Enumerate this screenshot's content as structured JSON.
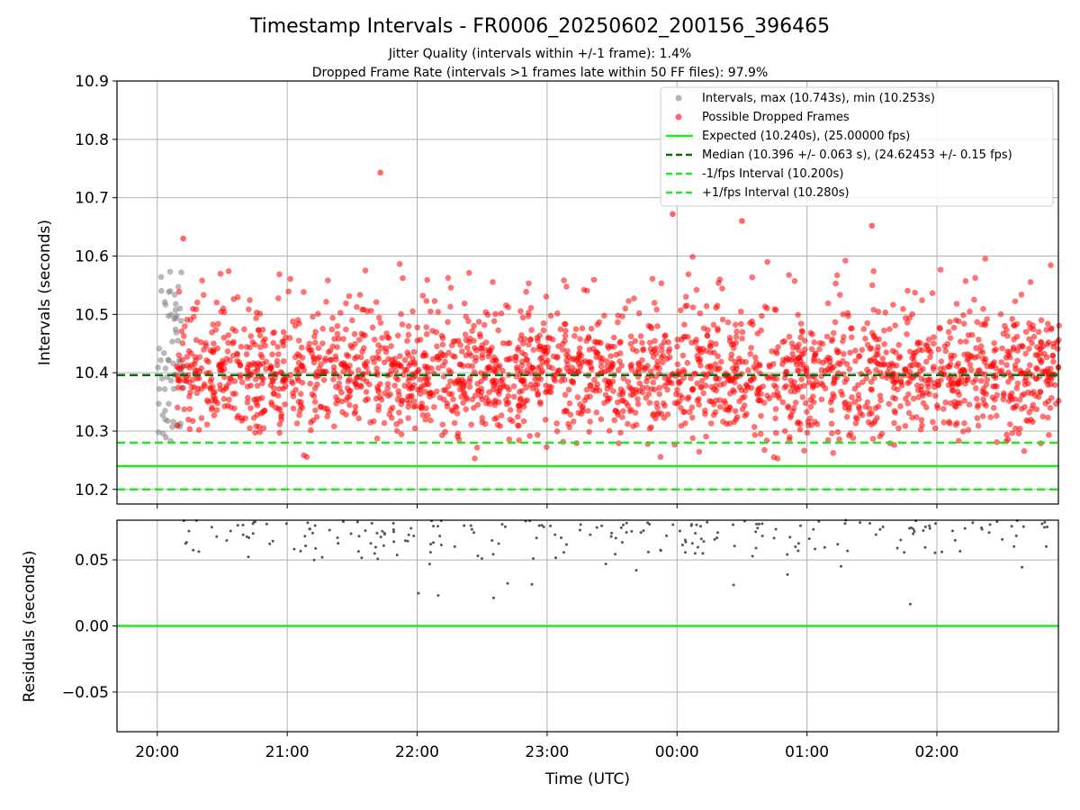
{
  "chart_data": {
    "type": "scatter",
    "title": "Timestamp Intervals - FR0006_20250602_200156_396465",
    "subtitle_lines": [
      "Jitter Quality (intervals within +/-1 frame): 1.4%",
      "Dropped Frame Rate (intervals >1 frames late within 50 FF files): 97.9%"
    ],
    "xlabel": "Time (UTC)",
    "x_tick_labels": [
      "20:00",
      "21:00",
      "22:00",
      "23:00",
      "00:00",
      "01:00",
      "02:00"
    ],
    "panels": [
      {
        "name": "intervals",
        "ylabel": "Intervals (seconds)",
        "ylim": [
          10.175,
          10.9
        ],
        "y_ticks": [
          10.2,
          10.3,
          10.4,
          10.5,
          10.6,
          10.7,
          10.8,
          10.9
        ],
        "y_tick_labels": [
          "10.2",
          "10.3",
          "10.4",
          "10.5",
          "10.6",
          "10.7",
          "10.8",
          "10.9"
        ],
        "grid": true,
        "legend_position": "top-right",
        "series": [
          {
            "name": "Intervals, max (10.743s), min (10.253s)",
            "marker": "circle",
            "color": "#808080",
            "x_range_hours": [
              0.0,
              0.2
            ],
            "y_range": [
              10.28,
              10.575
            ],
            "approx_count": 60
          },
          {
            "name": "Possible Dropped Frames",
            "marker": "circle",
            "color": "#ff0000",
            "x_range_hours": [
              0.15,
              6.95
            ],
            "y_range": [
              10.253,
              10.743
            ],
            "center": 10.396,
            "approx_count": 2300,
            "highlighted_points": [
              {
                "x": "21:43",
                "y": 10.743
              },
              {
                "x": "20:12",
                "y": 10.63
              },
              {
                "x": "23:58",
                "y": 10.672
              },
              {
                "x": "00:30",
                "y": 10.66
              },
              {
                "x": "01:30",
                "y": 10.652
              }
            ]
          }
        ],
        "lines": [
          {
            "name": "Expected (10.240s), (25.00000 fps)",
            "y": 10.24,
            "style": "solid",
            "color": "#22e822"
          },
          {
            "name": "Median (10.396 +/- 0.063 s), (24.62453 +/- 0.15 fps)",
            "y": 10.396,
            "style": "dashed",
            "color": "#0b6e0b"
          },
          {
            "name": "-1/fps Interval (10.200s)",
            "y": 10.2,
            "style": "dashed",
            "color": "#22e822"
          },
          {
            "name": "+1/fps Interval (10.280s)",
            "y": 10.28,
            "style": "dashed",
            "color": "#22e822"
          }
        ]
      },
      {
        "name": "residuals",
        "ylabel": "Residuals (seconds)",
        "ylim": [
          -0.08,
          0.08
        ],
        "y_ticks": [
          -0.05,
          0.0,
          0.05
        ],
        "y_tick_labels": [
          "−0.05",
          "0.00",
          "0.05"
        ],
        "grid": true,
        "zero_line_color": "#22e822",
        "points_color": "#555555",
        "points_y_range": [
          0.012,
          0.08
        ]
      }
    ]
  }
}
